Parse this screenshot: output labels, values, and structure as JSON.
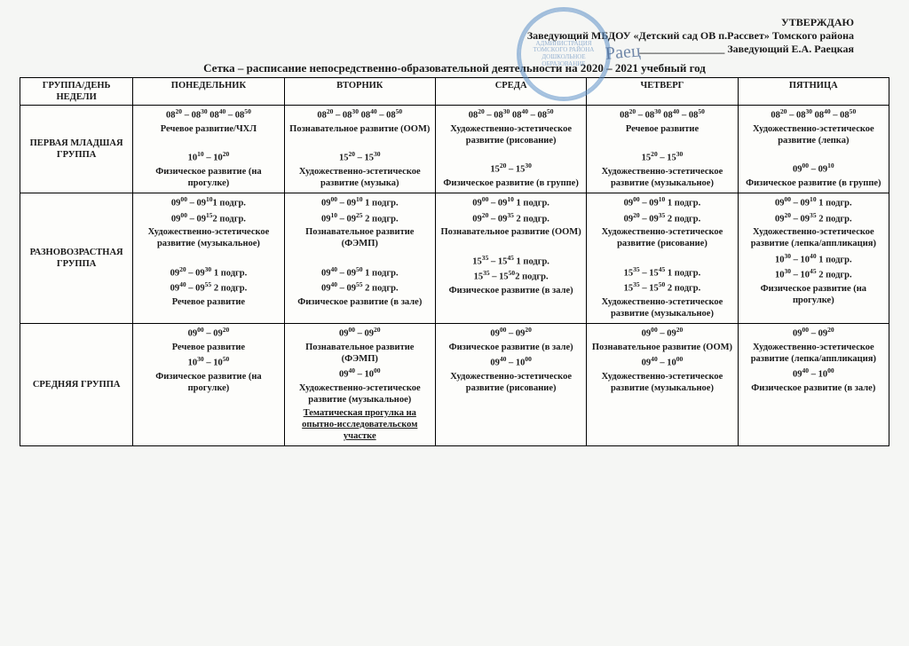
{
  "header": {
    "approve": "УТВЕРЖДАЮ",
    "line2": "Заведующий МБДОУ «Детский сад ОВ п.Рассвет» Томского района",
    "line3": "________________ Заведующий  Е.А. Раецкая",
    "stamp_text": "АДМИНИСТРАЦИЯ ТОМСКОГО РАЙОНА ДОШКОЛЬНОЕ ОБРАЗОВАНИЕ"
  },
  "title": "Сетка – расписание непосредственно-образовательной деятельности на 2020 – 2021 учебный год",
  "columns": [
    "ГРУППА/ДЕНЬ НЕДЕЛИ",
    "ПОНЕДЕЛЬНИК",
    "ВТОРНИК",
    "СРЕДА",
    "ЧЕТВЕРГ",
    "ПЯТНИЦА"
  ],
  "column_widths": [
    "13%",
    "17.4%",
    "17.4%",
    "17.4%",
    "17.4%",
    "17.4%"
  ],
  "rows": [
    {
      "label": "ПЕРВАЯ МЛАДШАЯ ГРУППА",
      "cells": [
        [
          {
            "t": "08<sup>20</sup> – 08<sup>30</sup>  08<sup>40</sup> – 08<sup>50</sup>",
            "b": true
          },
          {
            "t": "Речевое развитие/ЧХЛ",
            "b": true
          },
          {
            "t": "&nbsp;"
          },
          {
            "t": "10<sup>10</sup> – 10<sup>20</sup>",
            "b": true
          },
          {
            "t": "Физическое развитие (на прогулке)",
            "b": true
          }
        ],
        [
          {
            "t": "08<sup>20</sup> – 08<sup>30</sup>  08<sup>40</sup> – 08<sup>50</sup>",
            "b": true
          },
          {
            "t": "Познавательное развитие (ООМ)",
            "b": true
          },
          {
            "t": "&nbsp;"
          },
          {
            "t": "15<sup>20</sup> – 15<sup>30</sup>",
            "b": true
          },
          {
            "t": "Художественно-эстетическое развитие (музыка)",
            "b": true
          }
        ],
        [
          {
            "t": "08<sup>20</sup> – 08<sup>30</sup>  08<sup>40</sup> – 08<sup>50</sup>",
            "b": true
          },
          {
            "t": "Художественно-эстетическое развитие (рисование)",
            "b": true
          },
          {
            "t": "&nbsp;"
          },
          {
            "t": "15<sup>20</sup> – 15<sup>30</sup>",
            "b": true
          },
          {
            "t": "Физическое развитие (в группе)",
            "b": true
          }
        ],
        [
          {
            "t": "08<sup>20</sup> – 08<sup>30</sup>  08<sup>40</sup> – 08<sup>50</sup>",
            "b": true
          },
          {
            "t": "Речевое развитие",
            "b": true
          },
          {
            "t": "&nbsp;"
          },
          {
            "t": "15<sup>20</sup> – 15<sup>30</sup>",
            "b": true
          },
          {
            "t": "Художественно-эстетическое развитие (музыкальное)",
            "b": true
          }
        ],
        [
          {
            "t": "08<sup>20</sup> – 08<sup>30</sup>  08<sup>40</sup> – 08<sup>50</sup>",
            "b": true
          },
          {
            "t": "Художественно-эстетическое развитие (лепка)",
            "b": true
          },
          {
            "t": "&nbsp;"
          },
          {
            "t": "09<sup>00</sup> – 09<sup>10</sup>",
            "b": true
          },
          {
            "t": "Физическое развитие (в группе)",
            "b": true
          }
        ]
      ]
    },
    {
      "label": "РАЗНОВОЗРАСТНАЯ ГРУППА",
      "cells": [
        [
          {
            "t": "09<sup>00</sup> – 09<sup>10</sup>1 подгр.",
            "b": true
          },
          {
            "t": "09<sup>00</sup> – 09<sup>15</sup>2 подгр.",
            "b": true
          },
          {
            "t": "Художественно-эстетическое развитие (музыкальное)",
            "b": true
          },
          {
            "t": "&nbsp;"
          },
          {
            "t": "09<sup>20</sup> – 09<sup>30</sup> 1 подгр.",
            "b": true
          },
          {
            "t": "09<sup>40</sup> – 09<sup>55</sup> 2 подгр.",
            "b": true
          },
          {
            "t": "Речевое развитие",
            "b": true
          }
        ],
        [
          {
            "t": "09<sup>00</sup> – 09<sup>10</sup> 1 подгр.",
            "b": true
          },
          {
            "t": "09<sup>10</sup> – 09<sup>25</sup> 2 подгр.",
            "b": true
          },
          {
            "t": "Познавательное развитие (ФЭМП)",
            "b": true
          },
          {
            "t": "&nbsp;"
          },
          {
            "t": "09<sup>40</sup> – 09<sup>50</sup> 1 подгр.",
            "b": true
          },
          {
            "t": "09<sup>40</sup> – 09<sup>55</sup> 2 подгр.",
            "b": true
          },
          {
            "t": "Физическое развитие (в зале)",
            "b": true
          }
        ],
        [
          {
            "t": "09<sup>00</sup> – 09<sup>10</sup> 1 подгр.",
            "b": true
          },
          {
            "t": "09<sup>20</sup> – 09<sup>35</sup> 2 подгр.",
            "b": true
          },
          {
            "t": "Познавательное развитие (ООМ)",
            "b": true
          },
          {
            "t": "&nbsp;"
          },
          {
            "t": "15<sup>35</sup> – 15<sup>45</sup> 1 подгр.",
            "b": true
          },
          {
            "t": "15<sup>35</sup> – 15<sup>50</sup>2 подгр.",
            "b": true
          },
          {
            "t": "Физическое развитие (в зале)",
            "b": true
          }
        ],
        [
          {
            "t": "09<sup>00</sup> – 09<sup>10</sup> 1 подгр.",
            "b": true
          },
          {
            "t": "09<sup>20</sup> – 09<sup>35</sup> 2 подгр.",
            "b": true
          },
          {
            "t": "Художественно-эстетическое развитие (рисование)",
            "b": true
          },
          {
            "t": "&nbsp;"
          },
          {
            "t": "15<sup>35</sup> – 15<sup>45</sup> 1 подгр.",
            "b": true
          },
          {
            "t": "15<sup>35</sup> – 15<sup>50</sup> 2 подгр.",
            "b": true
          },
          {
            "t": "Художественно-эстетическое развитие (музыкальное)",
            "b": true
          }
        ],
        [
          {
            "t": "09<sup>00</sup> – 09<sup>10</sup> 1 подгр.",
            "b": true
          },
          {
            "t": "09<sup>20</sup> – 09<sup>35</sup> 2 подгр.",
            "b": true
          },
          {
            "t": "Художественно-эстетическое развитие (лепка/аппликация)",
            "b": true
          },
          {
            "t": "10<sup>30</sup> – 10<sup>40</sup> 1 подгр.",
            "b": true
          },
          {
            "t": "10<sup>30</sup> – 10<sup>45</sup> 2 подгр.",
            "b": true
          },
          {
            "t": "Физическое развитие (на прогулке)",
            "b": true
          }
        ]
      ]
    },
    {
      "label": "СРЕДНЯЯ ГРУППА",
      "cells": [
        [
          {
            "t": "09<sup>00</sup> – 09<sup>20</sup>",
            "b": true
          },
          {
            "t": "Речевое развитие",
            "b": true
          },
          {
            "t": "10<sup>30</sup> – 10<sup>50</sup>",
            "b": true
          },
          {
            "t": "Физическое развитие (на прогулке)",
            "b": true
          }
        ],
        [
          {
            "t": "09<sup>00</sup> – 09<sup>20</sup>",
            "b": true
          },
          {
            "t": "Познавательное развитие (ФЭМП)",
            "b": true
          },
          {
            "t": "09<sup>40</sup> – 10<sup>00</sup>",
            "b": true
          },
          {
            "t": "Художественно-эстетическое развитие (музыкальное)",
            "b": true
          },
          {
            "t": "Тематическая прогулка на опытно-исследовательском участке",
            "b": true,
            "u": true
          }
        ],
        [
          {
            "t": "09<sup>00</sup> – 09<sup>20</sup>",
            "b": true
          },
          {
            "t": "Физическое развитие (в зале)",
            "b": true
          },
          {
            "t": "09<sup>40</sup> – 10<sup>00</sup>",
            "b": true
          },
          {
            "t": "Художественно-эстетическое развитие (рисование)",
            "b": true
          }
        ],
        [
          {
            "t": "09<sup>00</sup> – 09<sup>20</sup>",
            "b": true
          },
          {
            "t": "Познавательное развитие (ООМ)",
            "b": true
          },
          {
            "t": "09<sup>40</sup> – 10<sup>00</sup>",
            "b": true
          },
          {
            "t": "Художественно-эстетическое развитие (музыкальное)",
            "b": true
          }
        ],
        [
          {
            "t": "09<sup>00</sup> – 09<sup>20</sup>",
            "b": true
          },
          {
            "t": "Художественно-эстетическое развитие (лепка/аппликация)",
            "b": true
          },
          {
            "t": "09<sup>40</sup> – 10<sup>00</sup>",
            "b": true
          },
          {
            "t": "Физическое развитие (в зале)",
            "b": true
          }
        ]
      ]
    }
  ],
  "style": {
    "background": "#f5f6f4",
    "border_color": "#000000",
    "text_color": "#1a1a1a",
    "stamp_color": "#5b8fc7"
  }
}
